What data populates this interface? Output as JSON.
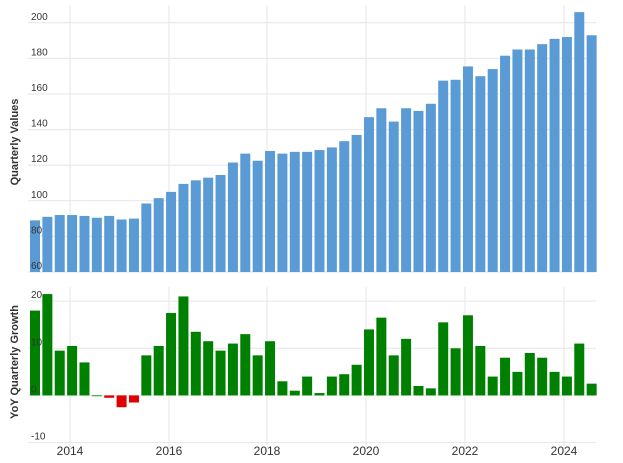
{
  "colors": {
    "values_bar": "#5b9bd5",
    "growth_positive": "#008000",
    "growth_negative": "#e00000",
    "grid": "#e6e6e6",
    "text": "#333333"
  },
  "chart_data": [
    {
      "type": "bar",
      "ylabel": "Quarterly Values",
      "ylim": [
        60,
        210
      ],
      "yticks": [
        60,
        80,
        100,
        120,
        140,
        160,
        180,
        200
      ],
      "xticks": [
        "2014",
        "2016",
        "2018",
        "2020",
        "2022",
        "2024"
      ],
      "grid": true,
      "series": [
        {
          "values": [
            89,
            91,
            92,
            92,
            91.5,
            90.5,
            91.5,
            89.5,
            90,
            98.5,
            101.5,
            105,
            109.5,
            111.5,
            113,
            114.5,
            121.5,
            126.5,
            122.5,
            128,
            126.5,
            127.5,
            127.5,
            128.5,
            130,
            133.5,
            137,
            147,
            152,
            144.5,
            152,
            150.5,
            154.5,
            167.5,
            168,
            175.5,
            170,
            174,
            181.5,
            185,
            185,
            188,
            191,
            192,
            206,
            193
          ]
        }
      ]
    },
    {
      "type": "bar",
      "ylabel": "YoY Quarterly Growth",
      "ylim": [
        -12,
        23
      ],
      "yticks": [
        -10,
        0,
        10,
        20
      ],
      "xticks": [
        "2014",
        "2016",
        "2018",
        "2020",
        "2022",
        "2024"
      ],
      "grid": true,
      "series": [
        {
          "values": [
            18,
            21.5,
            9.5,
            10.5,
            7,
            0,
            -0.5,
            -2.5,
            -1.5,
            8.5,
            10.5,
            17.5,
            21,
            13.5,
            11.5,
            9.5,
            11,
            13,
            8.5,
            11.5,
            3,
            1,
            4,
            0.5,
            4,
            4.5,
            6.5,
            14,
            16.5,
            8.5,
            12,
            2,
            1.5,
            15.5,
            10,
            17,
            10.5,
            4,
            8,
            5,
            9,
            8,
            5,
            4,
            11,
            2.5
          ]
        }
      ]
    }
  ]
}
